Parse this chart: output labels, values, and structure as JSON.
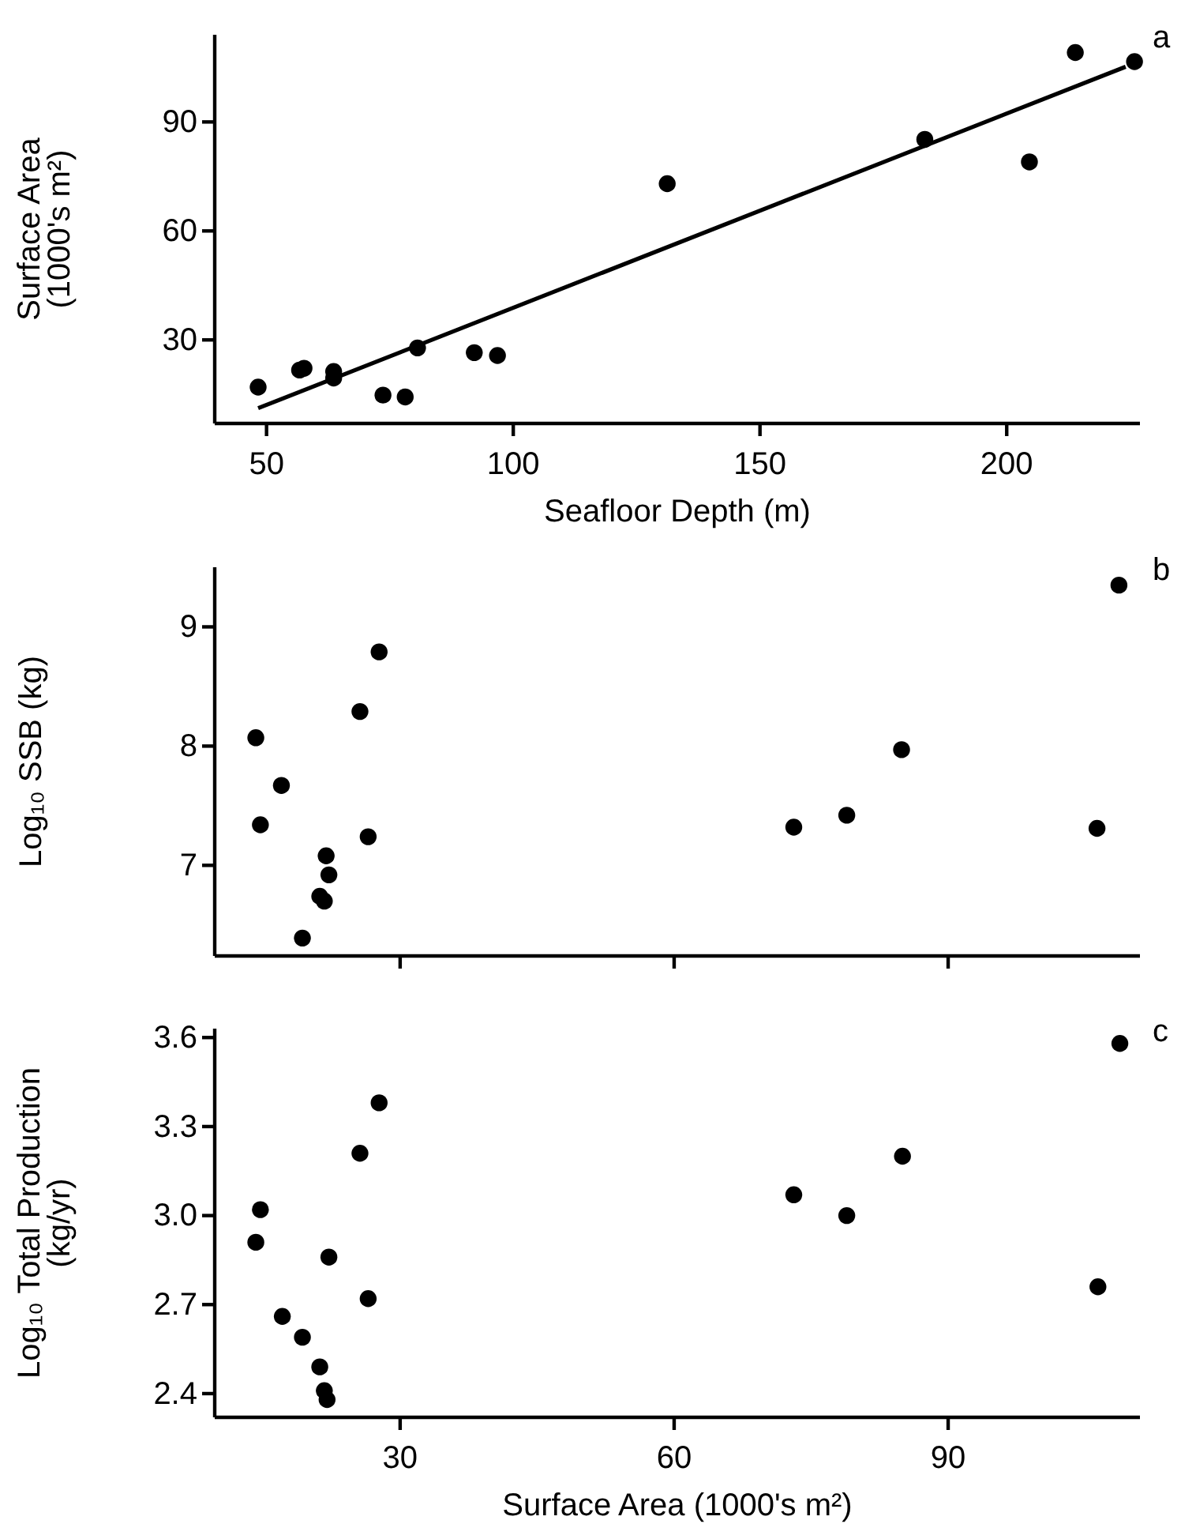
{
  "chart_data": [
    {
      "type": "scatter",
      "xlabel": "Seafloor Depth (m)",
      "ylabel": "Surface Area (1000's m²)",
      "annotations": [
        "a"
      ],
      "marker": "circle",
      "xlim": [
        39.5,
        227
      ],
      "ylim": [
        7,
        114
      ],
      "xticks": [
        50,
        100,
        150,
        200
      ],
      "yticks": [
        30,
        60,
        90
      ],
      "series": [
        {
          "color": "#000000",
          "x": [
            48.3,
            56.7,
            57.6,
            63.6,
            63.6,
            73.6,
            78.1,
            80.6,
            92.1,
            96.8,
            131.2,
            183.4,
            204.6,
            213.9,
            225.9
          ],
          "values": [
            17.0,
            21.7,
            22.2,
            21.3,
            19.5,
            14.8,
            14.3,
            27.8,
            26.5,
            25.7,
            73.0,
            85.2,
            79.0,
            109.1,
            106.6
          ]
        },
        {
          "type": "line",
          "color": "#000000",
          "line_style": "solid",
          "marker": "none",
          "x": [
            48.3,
            224.1
          ],
          "values": [
            11.2,
            105.2
          ]
        }
      ]
    },
    {
      "type": "scatter",
      "ylabel": "Log₁₀ SSB (kg)",
      "annotations": [
        "b"
      ],
      "marker": "circle",
      "tick_labels": "y",
      "xlim": [
        9.7,
        111
      ],
      "ylim": [
        6.24,
        9.5
      ],
      "xticks": [
        30,
        60,
        90
      ],
      "yticks": [
        7,
        8,
        9
      ],
      "series": [
        {
          "color": "#000000",
          "x": [
            14.2,
            14.7,
            17.0,
            19.3,
            21.2,
            21.7,
            21.9,
            22.2,
            25.6,
            26.5,
            27.7,
            73.1,
            78.9,
            84.9,
            106.3,
            108.7
          ],
          "values": [
            8.07,
            7.34,
            7.67,
            6.39,
            6.74,
            6.7,
            7.08,
            6.92,
            8.29,
            7.24,
            8.79,
            7.32,
            7.42,
            7.97,
            7.31,
            9.35
          ]
        }
      ]
    },
    {
      "type": "scatter",
      "xlabel": "Surface Area (1000's m²)",
      "ylabel": "Log₁₀ Total Production (kg/yr)",
      "annotations": [
        "c"
      ],
      "marker": "circle",
      "xlim": [
        9.7,
        111
      ],
      "ylim": [
        2.32,
        3.63
      ],
      "xticks": [
        30,
        60,
        90
      ],
      "yticks": [
        {
          "value": 2.4,
          "label": "2.4"
        },
        {
          "value": 2.7,
          "label": "2.7"
        },
        {
          "value": 3.0,
          "label": "3.0"
        },
        {
          "value": 3.3,
          "label": "3.3"
        },
        {
          "value": 3.6,
          "label": "3.6"
        }
      ],
      "series": [
        {
          "color": "#000000",
          "x": [
            14.2,
            14.7,
            17.1,
            19.3,
            21.2,
            21.7,
            22.0,
            22.2,
            25.6,
            26.5,
            27.7,
            73.1,
            78.9,
            85.0,
            106.4,
            108.8
          ],
          "values": [
            2.91,
            3.02,
            2.66,
            2.59,
            2.49,
            2.41,
            2.38,
            2.86,
            3.21,
            2.72,
            3.38,
            3.07,
            3.0,
            3.2,
            2.76,
            3.58
          ]
        }
      ]
    }
  ]
}
